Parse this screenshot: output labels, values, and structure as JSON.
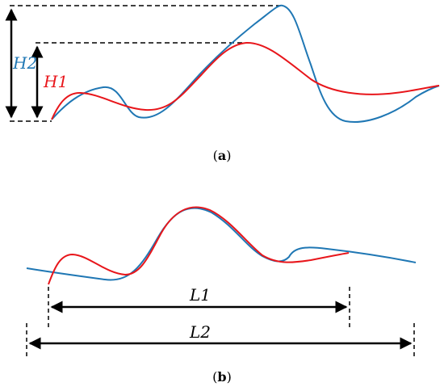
{
  "figure": {
    "panel_a": {
      "caption_open": "(",
      "caption_letter": "a",
      "caption_close": ")",
      "label_h2": "H2",
      "label_h1": "H1"
    },
    "panel_b": {
      "caption_open": "(",
      "caption_letter": "b",
      "caption_close": ")",
      "label_l1": "L1",
      "label_l2": "L2"
    },
    "colors": {
      "blue_curve": "#1f77b4",
      "red_curve": "#e8161b",
      "axis_black": "#000000"
    }
  }
}
